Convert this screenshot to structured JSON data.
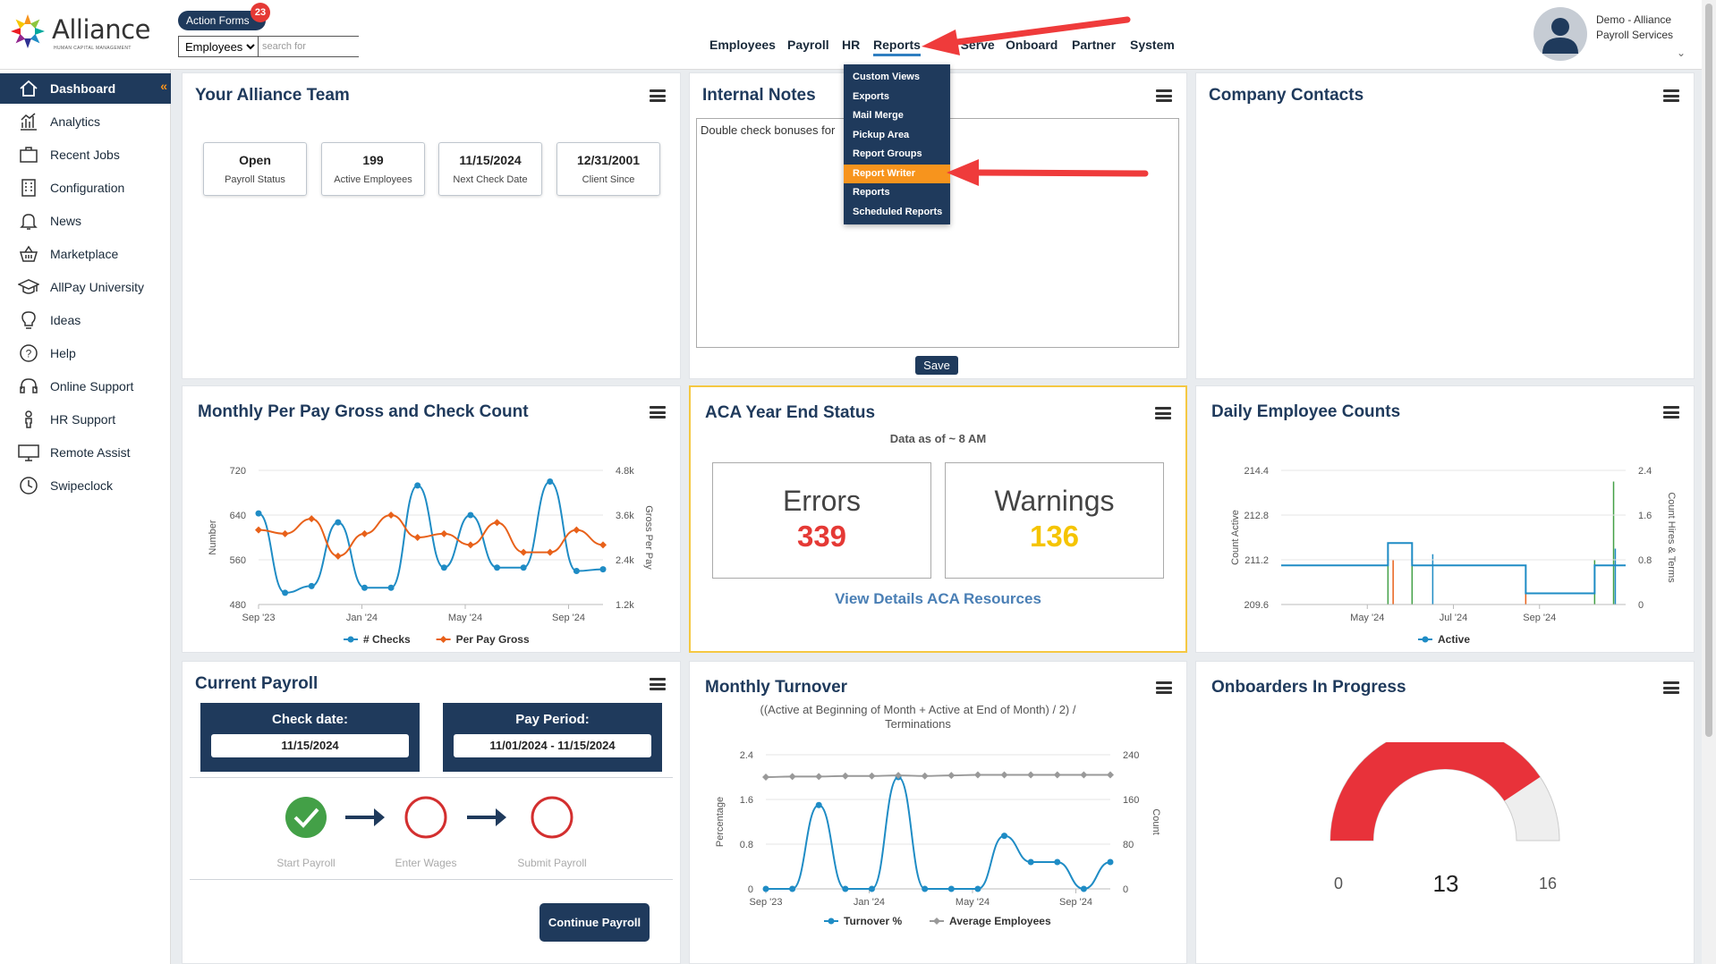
{
  "header": {
    "logo_name": "Alliance",
    "logo_tagline": "HUMAN CAPITAL MANAGEMENT",
    "action_forms_label": "Action Forms",
    "action_forms_count": "23",
    "search_category": "Employees",
    "search_placeholder": "search for",
    "nav": [
      "Employees",
      "Payroll",
      "HR",
      "Reports",
      "Self Serve",
      "Onboard",
      "Partner",
      "System"
    ],
    "active_nav": "Reports",
    "user_name": "Demo - Alliance Payroll Services"
  },
  "reports_menu": {
    "items": [
      "Custom Views",
      "Exports",
      "Mail Merge",
      "Pickup Area",
      "Report Groups",
      "Report Writer",
      "Reports",
      "Scheduled Reports"
    ],
    "highlighted": "Report Writer"
  },
  "sidebar": {
    "items": [
      {
        "label": "Dashboard",
        "icon": "home-icon"
      },
      {
        "label": "Analytics",
        "icon": "analytics-icon"
      },
      {
        "label": "Recent Jobs",
        "icon": "briefcase-icon"
      },
      {
        "label": "Configuration",
        "icon": "building-icon"
      },
      {
        "label": "News",
        "icon": "bell-icon"
      },
      {
        "label": "Marketplace",
        "icon": "basket-icon"
      },
      {
        "label": "AllPay University",
        "icon": "graduation-cap-icon"
      },
      {
        "label": "Ideas",
        "icon": "lightbulb-icon"
      },
      {
        "label": "Help",
        "icon": "question-circle-icon"
      },
      {
        "label": "Online Support",
        "icon": "headset-icon"
      },
      {
        "label": "HR Support",
        "icon": "person-icon"
      },
      {
        "label": "Remote Assist",
        "icon": "monitor-icon"
      },
      {
        "label": "Swipeclock",
        "icon": "clock-icon"
      }
    ],
    "active": "Dashboard"
  },
  "team_card": {
    "title": "Your Alliance Team",
    "stats": [
      {
        "value": "Open",
        "label": "Payroll Status"
      },
      {
        "value": "199",
        "label": "Active Employees"
      },
      {
        "value": "11/15/2024",
        "label": "Next Check Date"
      },
      {
        "value": "12/31/2001",
        "label": "Client Since"
      }
    ]
  },
  "notes_card": {
    "title": "Internal Notes",
    "text": "Double check bonuses for",
    "save_label": "Save"
  },
  "contacts_card": {
    "title": "Company Contacts"
  },
  "aca_card": {
    "title": "ACA Year End Status",
    "subtitle": "Data as of ~ 8 AM",
    "errors_label": "Errors",
    "errors_value": "339",
    "warnings_label": "Warnings",
    "warnings_value": "136",
    "link_label": "View Details ACA Resources",
    "colors": {
      "errors": "#e53935",
      "warnings": "#f5c400"
    }
  },
  "payroll_card": {
    "title": "Current Payroll",
    "check_date_label": "Check date:",
    "check_date": "11/15/2024",
    "pay_period_label": "Pay Period:",
    "pay_period": "11/01/2024 - 11/15/2024",
    "steps": [
      {
        "label": "Start Payroll",
        "done": true
      },
      {
        "label": "Enter Wages",
        "done": false
      },
      {
        "label": "Submit Payroll",
        "done": false
      }
    ],
    "continue_label": "Continue Payroll"
  },
  "onboarders_card": {
    "title": "Onboarders In Progress",
    "min_label": "0",
    "value_label": "13",
    "max_label": "16"
  },
  "chart_data": [
    {
      "type": "line",
      "title": "Monthly Per Pay Gross and Check Count",
      "x": [
        "Sep '23",
        "Oct '23",
        "Nov '23",
        "Dec '23",
        "Jan '24",
        "Feb '24",
        "Mar '24",
        "Apr '24",
        "May '24",
        "Jun '24",
        "Jul '24",
        "Aug '24",
        "Sep '24",
        "Oct '24"
      ],
      "x_tick_labels": [
        "Sep '23",
        "Jan '24",
        "May '24",
        "Sep '24"
      ],
      "ylabel": "Number",
      "ylabel_right": "Gross Per Pay",
      "ylim": [
        480,
        720
      ],
      "y_ticks": [
        "480",
        "560",
        "640",
        "720"
      ],
      "ylim_right": [
        1200,
        4800
      ],
      "y_ticks_right": [
        "1.2k",
        "2.4k",
        "3.6k",
        "4.8k"
      ],
      "series": [
        {
          "name": "# Checks",
          "axis": "left",
          "color": "#1f8cc5",
          "values": [
            643,
            501,
            513,
            627,
            510,
            510,
            693,
            546,
            640,
            546,
            546,
            700,
            540,
            543
          ]
        },
        {
          "name": "Per Pay Gross",
          "axis": "right",
          "color": "#e8611a",
          "values": [
            3200,
            3100,
            3500,
            2500,
            3100,
            3600,
            3000,
            3100,
            2800,
            3400,
            2600,
            2600,
            3200,
            2800
          ]
        }
      ],
      "legend": "bottom"
    },
    {
      "type": "line",
      "title": "Daily Employee Counts",
      "x_tick_labels": [
        "May '24",
        "Jul '24",
        "Sep '24"
      ],
      "ylabel": "Count Active",
      "ylabel_right": "Count Hires & Terms",
      "ylim": [
        209.6,
        214.4
      ],
      "y_ticks": [
        "209.6",
        "211.2",
        "212.8",
        "214.4"
      ],
      "ylim_right": [
        0,
        2.4
      ],
      "y_ticks_right": [
        "0",
        "0.8",
        "1.6",
        "2.4"
      ],
      "series": [
        {
          "name": "Active",
          "color": "#1f8cc5",
          "points": [
            [
              0,
              211.0
            ],
            [
              0.31,
              211.0
            ],
            [
              0.31,
              211.8
            ],
            [
              0.38,
              211.8
            ],
            [
              0.38,
              211.0
            ],
            [
              0.71,
              211.0
            ],
            [
              0.71,
              210.0
            ],
            [
              0.91,
              210.0
            ],
            [
              0.91,
              211.0
            ],
            [
              1,
              211.0
            ]
          ]
        }
      ],
      "legend": "bottom"
    },
    {
      "type": "line",
      "title": "Monthly Turnover",
      "subtitle": "((Active at Beginning of Month + Active at End of Month) / 2) / Terminations",
      "x": [
        "Sep '23",
        "Oct '23",
        "Nov '23",
        "Dec '23",
        "Jan '24",
        "Feb '24",
        "Mar '24",
        "Apr '24",
        "May '24",
        "Jun '24",
        "Jul '24",
        "Aug '24",
        "Sep '24",
        "Oct '24"
      ],
      "x_tick_labels": [
        "Sep '23",
        "Jan '24",
        "May '24",
        "Sep '24"
      ],
      "ylabel": "Percentage",
      "ylabel_right": "Count",
      "ylim": [
        0,
        2.4
      ],
      "y_ticks": [
        "0",
        "0.8",
        "1.6",
        "2.4"
      ],
      "ylim_right": [
        0,
        240
      ],
      "y_ticks_right": [
        "0",
        "80",
        "160",
        "240"
      ],
      "series": [
        {
          "name": "Turnover %",
          "axis": "left",
          "color": "#1f8cc5",
          "values": [
            0,
            0,
            1.5,
            0,
            0,
            2.0,
            0,
            0,
            0,
            0.95,
            0.48,
            0.48,
            0,
            0.48
          ]
        },
        {
          "name": "Average Employees",
          "axis": "right",
          "color": "#999999",
          "values": [
            200,
            201,
            201,
            202,
            202,
            203,
            202,
            203,
            204,
            204,
            204,
            204,
            204,
            204
          ]
        }
      ],
      "legend": "bottom"
    }
  ]
}
